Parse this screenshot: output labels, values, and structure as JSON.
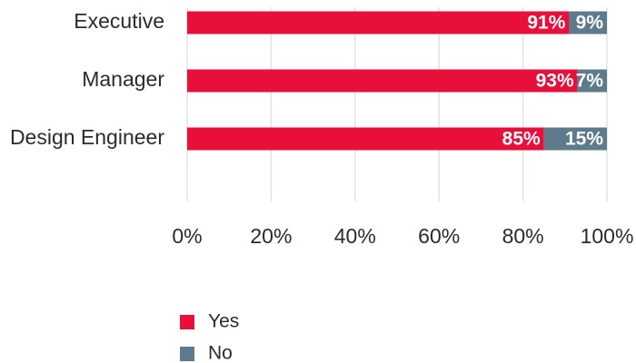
{
  "chart_data": {
    "type": "bar",
    "orientation": "horizontal",
    "stacked": true,
    "categories": [
      "Executive",
      "Manager",
      "Design Engineer"
    ],
    "series": [
      {
        "name": "Yes",
        "values": [
          91,
          93,
          85
        ],
        "labels": [
          "91%",
          "93%",
          "85%"
        ],
        "color": "#e8103a"
      },
      {
        "name": "No",
        "values": [
          9,
          7,
          15
        ],
        "labels": [
          "9%",
          "7%",
          "15%"
        ],
        "color": "#5d7b8c"
      }
    ],
    "xlim": [
      0,
      100
    ],
    "x_ticks": [
      0,
      20,
      40,
      60,
      80,
      100
    ],
    "x_tick_labels": [
      "0%",
      "20%",
      "40%",
      "60%",
      "80%",
      "100%"
    ],
    "grid": "vertical",
    "legend_position": "bottom"
  }
}
